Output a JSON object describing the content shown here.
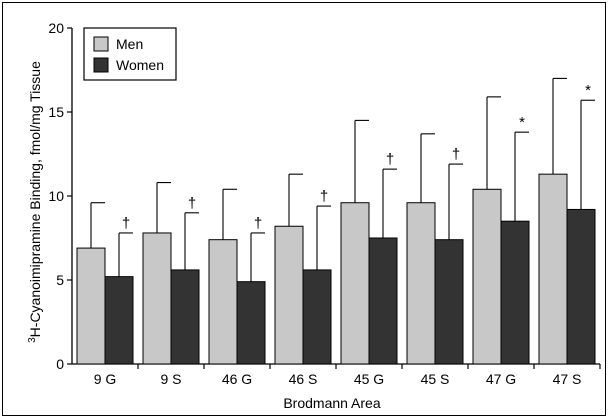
{
  "chart_data": {
    "type": "bar",
    "title": "",
    "xlabel": "Brodmann Area",
    "ylabel_sup": "3",
    "ylabel_main": "H-Cyanoimipramine Binding, fmol/mg Tissue",
    "ylim": [
      0,
      20
    ],
    "yticks": [
      "0",
      "5",
      "10",
      "15",
      "20"
    ],
    "categories": [
      "9 G",
      "9 S",
      "46 G",
      "46 S",
      "45 G",
      "45 S",
      "47 G",
      "47 S"
    ],
    "series": [
      {
        "name": "Men",
        "color": "#c8c8c8",
        "values": [
          6.9,
          7.8,
          7.4,
          8.2,
          9.6,
          9.6,
          10.4,
          11.3
        ],
        "error_upper": [
          9.6,
          10.8,
          10.4,
          11.3,
          14.5,
          13.7,
          15.9,
          17.0
        ]
      },
      {
        "name": "Women",
        "color": "#333333",
        "values": [
          5.2,
          5.6,
          4.9,
          5.6,
          7.5,
          7.4,
          8.5,
          9.2
        ],
        "error_upper": [
          7.8,
          9.0,
          7.8,
          9.4,
          11.6,
          11.9,
          13.8,
          15.7
        ],
        "significance": [
          "†",
          "†",
          "†",
          "†",
          "†",
          "†",
          "*",
          "*"
        ]
      }
    ],
    "legend_position": "top-left",
    "grid": false
  }
}
